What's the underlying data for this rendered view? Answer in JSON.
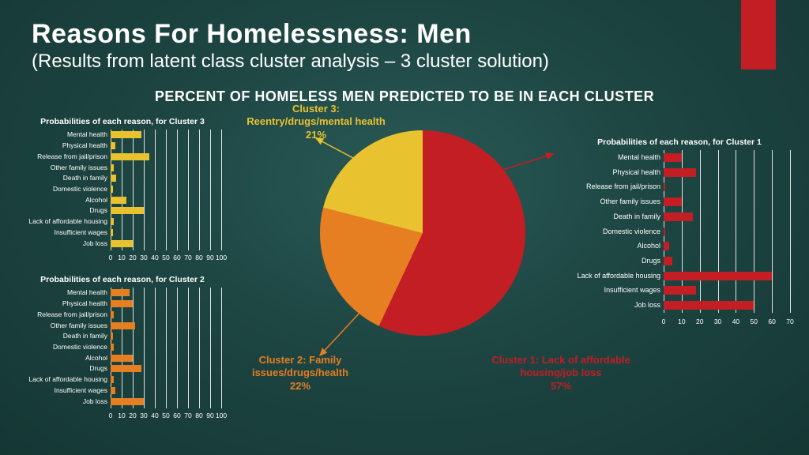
{
  "title": "Reasons For Homelessness: Men",
  "subtitle": "(Results from latent class cluster analysis – 3 cluster solution)",
  "chart_title": "PERCENT OF HOMELESS MEN PREDICTED TO BE IN EACH CLUSTER",
  "colors": {
    "accent": "#c21e24",
    "cluster1": "#c21e24",
    "cluster2": "#e67e22",
    "cluster3": "#e9c22f",
    "grid": "rgba(255,255,255,0.85)"
  },
  "pie": {
    "slices": [
      {
        "key": "c1",
        "label_line1": "Cluster 1: Lack of affordable",
        "label_line2": "housing/job loss",
        "pct": "57%",
        "value": 57,
        "color": "#c21e24"
      },
      {
        "key": "c2",
        "label_line1": "Cluster 2: Family",
        "label_line2": "issues/drugs/health",
        "pct": "22%",
        "value": 22,
        "color": "#e67e22"
      },
      {
        "key": "c3",
        "label_line1": "Cluster 3:",
        "label_line2": "Reentry/drugs/mental health",
        "pct": "21%",
        "value": 21,
        "color": "#e9c22f"
      }
    ]
  },
  "reasons": [
    "Mental health",
    "Physical health",
    "Release from jail/prison",
    "Other family issues",
    "Death in family",
    "Domestic violence",
    "Alcohol",
    "Drugs",
    "Lack of affordable housing",
    "Insufficient wages",
    "Job loss"
  ],
  "bar_panels": {
    "c3": {
      "title": "Probabilities of each reason, for Cluster 3",
      "color": "#e9c22f",
      "xmax": 100,
      "xtick_step": 10,
      "values": [
        28,
        4,
        35,
        3,
        5,
        2,
        14,
        30,
        3,
        2,
        20
      ]
    },
    "c2": {
      "title": "Probabilities of each reason, for Cluster 2",
      "color": "#e67e22",
      "xmax": 100,
      "xtick_step": 10,
      "values": [
        17,
        20,
        3,
        22,
        2,
        3,
        20,
        28,
        3,
        4,
        30
      ]
    },
    "c1": {
      "title": "Probabilities of each reason, for Cluster 1",
      "color": "#c21e24",
      "xmax": 70,
      "xtick_step": 10,
      "values": [
        10,
        18,
        1,
        10,
        16,
        1,
        3,
        5,
        60,
        18,
        50
      ]
    }
  }
}
